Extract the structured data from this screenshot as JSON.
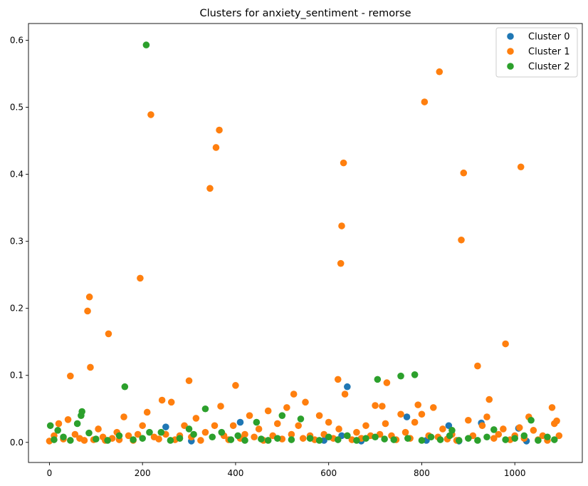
{
  "chart_data": {
    "type": "scatter",
    "title": "Clusters for anxiety_sentiment - remorse",
    "xlabel": "",
    "ylabel": "",
    "xlim": [
      -45,
      1145
    ],
    "ylim": [
      -0.03,
      0.625
    ],
    "xticks": [
      0,
      200,
      400,
      600,
      800,
      1000
    ],
    "yticks": [
      0.0,
      0.1,
      0.2,
      0.3,
      0.4,
      0.5,
      0.6
    ],
    "grid": false,
    "legend_position": "top-right",
    "series": [
      {
        "name": "Cluster 0",
        "color": "#1f77b4",
        "x": [
          250,
          305,
          410,
          590,
          628,
          640,
          670,
          768,
          810,
          858,
          880,
          928,
          1008,
          1025
        ],
        "y": [
          0.023,
          0.002,
          0.03,
          0.003,
          0.01,
          0.083,
          0.002,
          0.038,
          0.003,
          0.025,
          0.002,
          0.029,
          0.021,
          0.002
        ]
      },
      {
        "name": "Cluster 1",
        "color": "#ff7f0e",
        "x": [
          0,
          10,
          20,
          30,
          40,
          45,
          55,
          65,
          75,
          82,
          86,
          88,
          95,
          105,
          115,
          120,
          127,
          135,
          145,
          150,
          160,
          170,
          180,
          190,
          195,
          200,
          210,
          218,
          225,
          235,
          242,
          250,
          262,
          270,
          280,
          290,
          300,
          305,
          315,
          325,
          335,
          345,
          355,
          358,
          365,
          368,
          375,
          385,
          395,
          400,
          410,
          420,
          430,
          440,
          450,
          460,
          470,
          480,
          490,
          500,
          510,
          520,
          525,
          535,
          545,
          550,
          560,
          570,
          580,
          590,
          600,
          610,
          620,
          622,
          626,
          628,
          632,
          635,
          640,
          650,
          660,
          670,
          680,
          690,
          700,
          710,
          715,
          722,
          725,
          735,
          745,
          755,
          765,
          775,
          785,
          792,
          800,
          806,
          815,
          825,
          835,
          838,
          845,
          855,
          865,
          875,
          885,
          890,
          900,
          910,
          920,
          930,
          940,
          945,
          955,
          965,
          975,
          980,
          990,
          1000,
          1010,
          1013,
          1020,
          1030,
          1040,
          1050,
          1060,
          1070,
          1080,
          1085,
          1090,
          1095
        ],
        "y": [
          0.002,
          0.01,
          0.028,
          0.005,
          0.034,
          0.099,
          0.012,
          0.006,
          0.003,
          0.196,
          0.217,
          0.112,
          0.004,
          0.02,
          0.008,
          0.003,
          0.162,
          0.006,
          0.015,
          0.004,
          0.038,
          0.01,
          0.003,
          0.012,
          0.245,
          0.025,
          0.045,
          0.489,
          0.008,
          0.005,
          0.063,
          0.012,
          0.06,
          0.004,
          0.01,
          0.025,
          0.092,
          0.008,
          0.036,
          0.003,
          0.015,
          0.379,
          0.025,
          0.44,
          0.466,
          0.054,
          0.01,
          0.004,
          0.025,
          0.085,
          0.006,
          0.012,
          0.04,
          0.008,
          0.02,
          0.003,
          0.047,
          0.01,
          0.028,
          0.005,
          0.052,
          0.012,
          0.072,
          0.025,
          0.006,
          0.06,
          0.01,
          0.004,
          0.04,
          0.012,
          0.03,
          0.006,
          0.094,
          0.02,
          0.267,
          0.323,
          0.417,
          0.072,
          0.01,
          0.004,
          0.015,
          0.006,
          0.025,
          0.01,
          0.055,
          0.012,
          0.054,
          0.028,
          0.089,
          0.01,
          0.004,
          0.042,
          0.015,
          0.006,
          0.03,
          0.056,
          0.042,
          0.508,
          0.01,
          0.052,
          0.008,
          0.553,
          0.02,
          0.005,
          0.012,
          0.003,
          0.302,
          0.402,
          0.033,
          0.01,
          0.114,
          0.025,
          0.038,
          0.064,
          0.006,
          0.012,
          0.02,
          0.147,
          0.004,
          0.01,
          0.022,
          0.411,
          0.006,
          0.038,
          0.018,
          0.004,
          0.01,
          0.003,
          0.052,
          0.028,
          0.032,
          0.01
        ]
      },
      {
        "name": "Cluster 2",
        "color": "#2ca02c",
        "x": [
          2,
          10,
          18,
          30,
          45,
          60,
          68,
          70,
          85,
          100,
          125,
          150,
          162,
          180,
          200,
          208,
          215,
          240,
          260,
          280,
          300,
          310,
          335,
          350,
          370,
          390,
          405,
          420,
          445,
          455,
          470,
          490,
          500,
          520,
          540,
          560,
          580,
          600,
          620,
          640,
          660,
          680,
          700,
          705,
          720,
          740,
          755,
          770,
          785,
          800,
          820,
          840,
          860,
          865,
          880,
          900,
          920,
          940,
          955,
          980,
          1000,
          1020,
          1035,
          1050,
          1070,
          1085
        ],
        "y": [
          0.025,
          0.004,
          0.018,
          0.008,
          0.003,
          0.028,
          0.04,
          0.046,
          0.014,
          0.005,
          0.003,
          0.01,
          0.083,
          0.004,
          0.006,
          0.593,
          0.015,
          0.015,
          0.003,
          0.006,
          0.02,
          0.012,
          0.05,
          0.008,
          0.015,
          0.004,
          0.01,
          0.003,
          0.03,
          0.005,
          0.003,
          0.006,
          0.04,
          0.004,
          0.035,
          0.006,
          0.003,
          0.008,
          0.004,
          0.01,
          0.003,
          0.006,
          0.008,
          0.094,
          0.005,
          0.004,
          0.099,
          0.006,
          0.101,
          0.003,
          0.008,
          0.004,
          0.01,
          0.018,
          0.003,
          0.006,
          0.003,
          0.008,
          0.019,
          0.004,
          0.006,
          0.01,
          0.033,
          0.003,
          0.008,
          0.004
        ]
      }
    ]
  }
}
